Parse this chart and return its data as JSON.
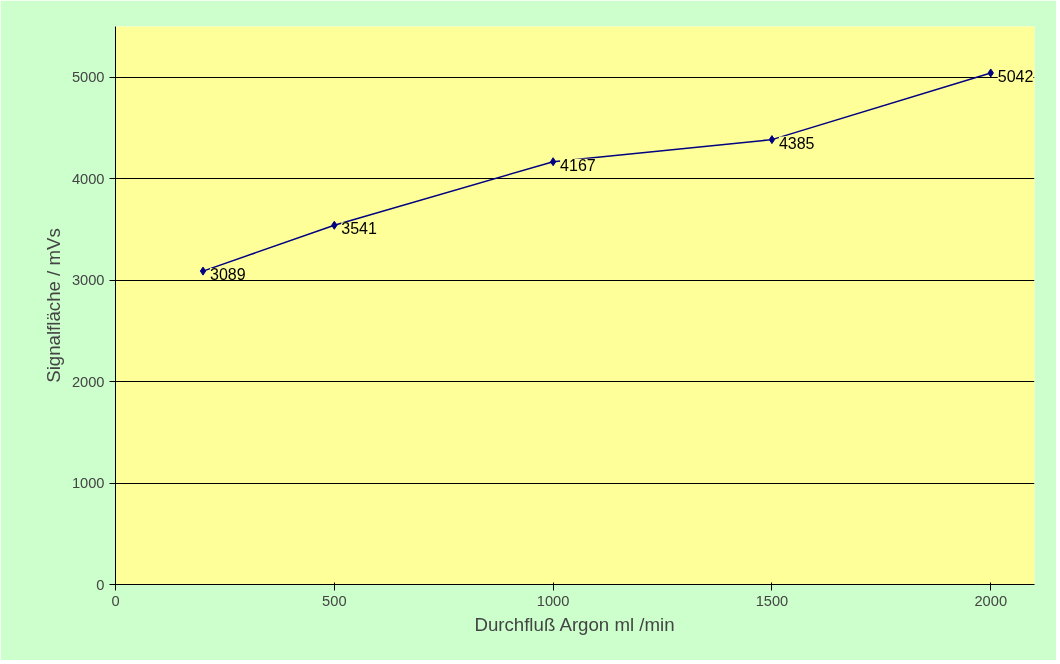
{
  "chart_data": {
    "type": "line",
    "xlabel": "Durchfluß Argon ml /min",
    "ylabel": "Signalfläche / mVs",
    "x": [
      200,
      500,
      1000,
      1500,
      2000
    ],
    "series": [
      {
        "color": "#000080",
        "values": [
          3089,
          3541,
          4167,
          4385,
          5042
        ]
      }
    ],
    "xlim": [
      0,
      2100
    ],
    "xticks": [
      0,
      500,
      1000,
      1500,
      2000
    ],
    "ylim": [
      0,
      5500
    ],
    "yticks": [
      0,
      1000,
      2000,
      3000,
      4000,
      5000
    ],
    "grid": "y",
    "marker": "diamond",
    "line_style": "solid",
    "data_labels": true
  }
}
